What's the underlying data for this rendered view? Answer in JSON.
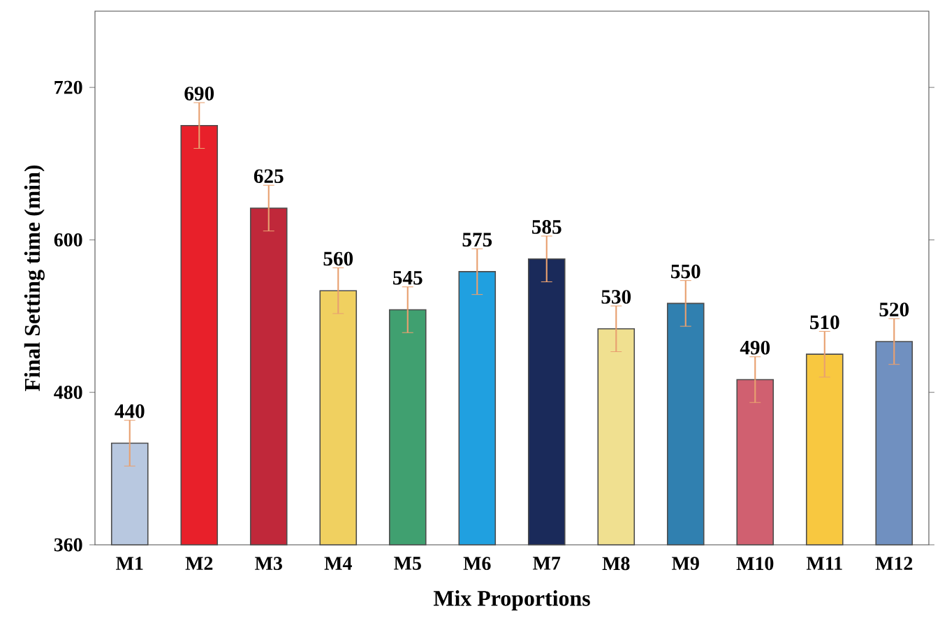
{
  "chart_data": {
    "type": "bar",
    "xlabel": "Mix Proportions",
    "ylabel": "Final Setting time (min)",
    "categories": [
      "M1",
      "M2",
      "M3",
      "M4",
      "M5",
      "M6",
      "M7",
      "M8",
      "M9",
      "M10",
      "M11",
      "M12"
    ],
    "values": [
      440,
      690,
      625,
      560,
      545,
      575,
      585,
      530,
      550,
      490,
      510,
      520
    ],
    "errors": [
      18,
      18,
      18,
      18,
      18,
      18,
      18,
      18,
      18,
      18,
      18,
      18
    ],
    "colors": [
      "#b8c8e0",
      "#e8202a",
      "#c0283a",
      "#f0d060",
      "#40a070",
      "#20a0e0",
      "#1a2a5a",
      "#f0e090",
      "#3080b0",
      "#d06070",
      "#f8c840",
      "#7090c0"
    ],
    "data_labels": true,
    "ylim": [
      360,
      780
    ],
    "yticks": [
      360,
      480,
      600,
      720
    ],
    "grid": false
  }
}
